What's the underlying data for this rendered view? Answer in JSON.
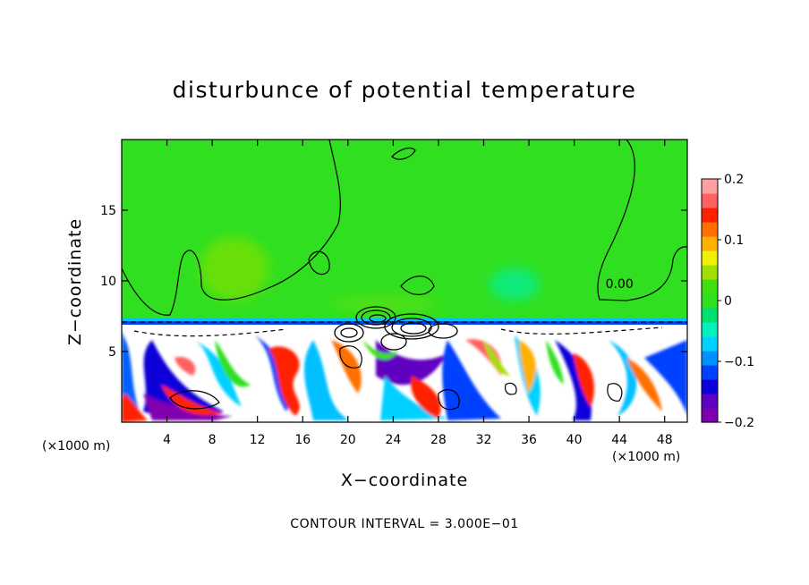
{
  "chart_data": {
    "type": "heatmap",
    "title": "disturbunce of potential temperature",
    "xlabel": "X−coordinate",
    "ylabel": "Z−coordinate",
    "x_unit_label": "(×1000 m)",
    "footer": "CONTOUR INTERVAL = 3.000E−01",
    "xlim": [
      0,
      50
    ],
    "ylim": [
      0,
      20
    ],
    "x_ticks": [
      4,
      8,
      12,
      16,
      20,
      24,
      28,
      32,
      36,
      40,
      44,
      48
    ],
    "y_ticks": [
      5,
      10,
      15
    ],
    "contour_label": "0.00",
    "contour_label_pos": [
      44,
      9.5
    ],
    "colorbar": {
      "range": [
        -0.2,
        0.2
      ],
      "ticks": [
        {
          "value": 0.2,
          "label": "0.2"
        },
        {
          "value": 0.1,
          "label": "0.1"
        },
        {
          "value": 0,
          "label": "0"
        },
        {
          "value": -0.1,
          "label": "−0.1"
        },
        {
          "value": -0.2,
          "label": "−0.2"
        }
      ],
      "colors": [
        "#8000b0",
        "#6000c0",
        "#1000d8",
        "#0040ff",
        "#0090ff",
        "#00d0ff",
        "#00f0c0",
        "#00e070",
        "#30e020",
        "#40e010",
        "#a0e000",
        "#f0f000",
        "#ffb000",
        "#ff7000",
        "#ff2000",
        "#ff6060",
        "#ffa0a0"
      ]
    },
    "grid": false
  }
}
